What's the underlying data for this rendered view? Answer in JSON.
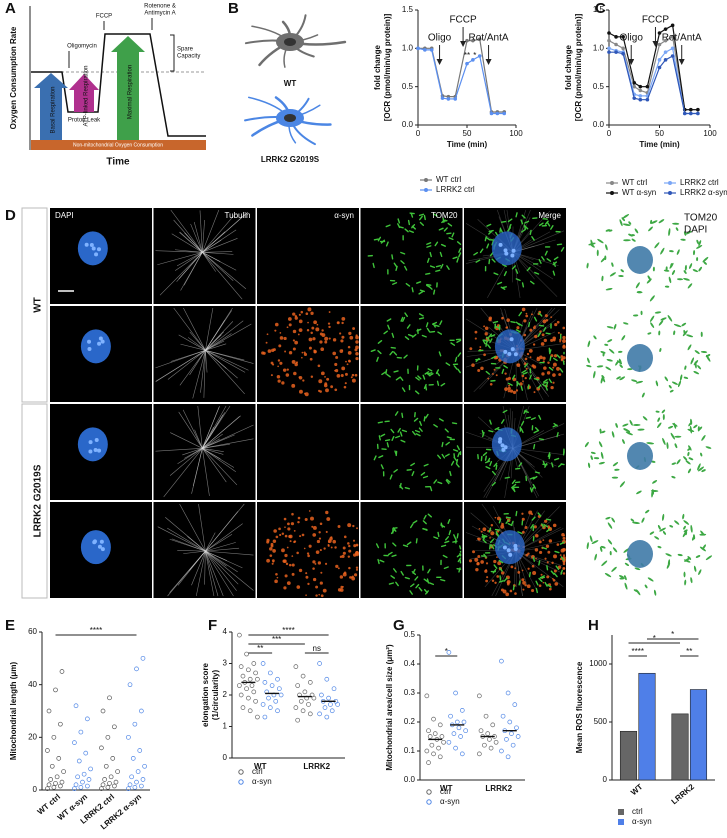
{
  "panel_labels": [
    "A",
    "B",
    "C",
    "D",
    "E",
    "F",
    "G",
    "H"
  ],
  "diagram": {
    "y_axis": "Oxygen Consumption Rate",
    "x_axis": "Time",
    "oligomycin": "Oligomycin",
    "fccp": "FCCP",
    "rotenone": [
      "Rotenone &",
      "Antimycin A"
    ],
    "spare": [
      "Spare",
      "Capacity"
    ],
    "basal": "Basal Respiration",
    "atp": "ATP-linked Respiration",
    "proton": "Proton Leak",
    "maximal": "Maximal Respiration",
    "non_mito": "Non-mitochondrial Oxygen Consumption"
  },
  "cells": [
    "WT",
    "LRRK2 G2019S"
  ],
  "microscopy": {
    "columns": [
      "DAPI",
      "Tubulin",
      "α-syn",
      "TOM20",
      "Merge"
    ],
    "rows": [
      "WT",
      "LRRK2 G2019S"
    ],
    "render_legend": [
      "TOM20",
      "DAPI"
    ]
  },
  "chart_data": [
    {
      "type": "line",
      "ylabel": [
        "fold change",
        "[OCR (pmol/min/ug protein)]"
      ],
      "xlabel": "Time (min)",
      "x": [
        0,
        7,
        14,
        25,
        31,
        38,
        50,
        56,
        63,
        75,
        81,
        88
      ],
      "xlim": [
        0,
        100
      ],
      "xticks": [
        0,
        50,
        100
      ],
      "ylim": [
        0,
        1.5
      ],
      "yticks": [
        {
          "value": 0,
          "label": "0.0"
        },
        {
          "value": 0.5,
          "label": "0.5"
        },
        {
          "value": 1,
          "label": "1.0"
        },
        {
          "value": 1.5,
          "label": "1.5"
        }
      ],
      "injections": [
        {
          "label": "Oligo",
          "x": 22
        },
        {
          "label": "FCCP",
          "x": 46
        },
        {
          "label": "Rot/AntA",
          "x": 72
        }
      ],
      "stars": [
        {
          "label": "**",
          "x": 50
        },
        {
          "label": "*",
          "x": 58
        }
      ],
      "series": [
        {
          "name": "WT ctrl",
          "color": "#777777",
          "values": [
            1,
            1,
            1,
            0.38,
            0.37,
            0.37,
            1.1,
            1.1,
            1.12,
            0.17,
            0.17,
            0.17
          ]
        },
        {
          "name": "LRRK2 ctrl",
          "color": "#5b8ff0",
          "values": [
            1,
            0.98,
            0.98,
            0.35,
            0.34,
            0.34,
            0.8,
            0.85,
            0.9,
            0.15,
            0.15,
            0.15
          ]
        }
      ]
    },
    {
      "type": "line",
      "ylabel": [
        "fold change",
        "[OCR (pmol/min/ug protein)]"
      ],
      "xlabel": "Time (min)",
      "x": [
        0,
        7,
        14,
        25,
        31,
        38,
        50,
        56,
        63,
        75,
        81,
        88
      ],
      "xlim": [
        0,
        100
      ],
      "xticks": [
        0,
        50,
        100
      ],
      "ylim": [
        0,
        1.5
      ],
      "yticks": [
        {
          "value": 0,
          "label": "0.0"
        },
        {
          "value": 0.5,
          "label": "0.5"
        },
        {
          "value": 1,
          "label": "1.0"
        },
        {
          "value": 1.5,
          "label": "1.5"
        }
      ],
      "injections": [
        {
          "label": "Oligo",
          "x": 22
        },
        {
          "label": "FCCP",
          "x": 46
        },
        {
          "label": "Rot/AntA",
          "x": 72
        }
      ],
      "series": [
        {
          "name": "WT ctrl",
          "color": "#888888",
          "values": [
            1.1,
            1.05,
            1,
            0.5,
            0.45,
            0.42,
            1.05,
            1.1,
            1.15,
            0.2,
            0.2,
            0.2
          ]
        },
        {
          "name": "WT α-syn",
          "color": "#111111",
          "values": [
            1.2,
            1.15,
            1.15,
            0.55,
            0.5,
            0.5,
            1.2,
            1.25,
            1.3,
            0.2,
            0.2,
            0.2
          ]
        },
        {
          "name": "LRRK2 ctrl",
          "color": "#7aa6f5",
          "values": [
            1,
            0.97,
            0.95,
            0.4,
            0.38,
            0.38,
            0.85,
            0.95,
            1,
            0.15,
            0.15,
            0.15
          ]
        },
        {
          "name": "LRRK2 α-syn",
          "color": "#2f57b8",
          "values": [
            0.95,
            0.95,
            0.93,
            0.35,
            0.33,
            0.33,
            0.75,
            0.85,
            0.9,
            0.15,
            0.15,
            0.15
          ]
        }
      ]
    },
    {
      "type": "strip",
      "ylabel": "Mitochondrial length (μm)",
      "categories": [
        "WT ctrl",
        "WT α-syn",
        "LRRK2 ctrl",
        "LRRK2 α-syn"
      ],
      "colors": [
        "#555555",
        "#4f86e6",
        "#555555",
        "#4f86e6"
      ],
      "ylim": [
        0,
        60
      ],
      "yticks": [
        0,
        20,
        40,
        60
      ],
      "brackets": [
        {
          "label": "****",
          "from": 0,
          "to": 3
        }
      ],
      "values": [
        [
          0.5,
          1,
          1.5,
          2,
          2.5,
          3,
          4,
          5,
          7,
          9,
          12,
          15,
          20,
          25,
          30,
          38,
          45
        ],
        [
          0.5,
          1,
          1.5,
          2,
          3,
          4,
          5,
          6,
          8,
          11,
          14,
          18,
          22,
          27,
          32
        ],
        [
          0.5,
          1,
          1.5,
          2,
          2.5,
          3,
          4,
          5,
          7,
          9,
          12,
          16,
          20,
          24,
          30,
          35
        ],
        [
          0.5,
          1,
          1.5,
          2,
          3,
          4,
          5,
          7,
          9,
          12,
          15,
          20,
          25,
          30,
          40,
          46,
          50
        ]
      ]
    },
    {
      "type": "strip",
      "ylabel": [
        "elongation score",
        "(1/circularity)"
      ],
      "categories": [
        "WT",
        "LRRK2"
      ],
      "ylim": [
        0,
        4
      ],
      "yticks": [
        0,
        1,
        2,
        3,
        4
      ],
      "brackets": [
        {
          "label": "**",
          "from": 0,
          "to": 1
        },
        {
          "label": "***",
          "from": 0,
          "to": 2
        },
        {
          "label": "****",
          "from": 0,
          "to": 3
        },
        {
          "label": "ns",
          "from": 2,
          "to": 3
        }
      ],
      "series": [
        {
          "name": "ctrl",
          "color": "#666666",
          "means": [
            2.4,
            1.95
          ],
          "values": [
            [
              3.9,
              3.3,
              3,
              2.9,
              2.8,
              2.7,
              2.6,
              2.5,
              2.5,
              2.4,
              2.3,
              2.3,
              2.2,
              2.1,
              2,
              1.9,
              1.8,
              1.6,
              1.5,
              1.3
            ],
            [
              2.9,
              2.6,
              2.4,
              2.3,
              2.1,
              2,
              2,
              1.9,
              1.9,
              1.8,
              1.7,
              1.6,
              1.5,
              1.4,
              1.2
            ]
          ]
        },
        {
          "name": "α-syn",
          "color": "#4f86e6",
          "means": [
            2.05,
            1.8
          ],
          "values": [
            [
              3,
              2.7,
              2.5,
              2.4,
              2.3,
              2.2,
              2.1,
              2,
              2,
              1.9,
              1.8,
              1.7,
              1.6,
              1.5,
              1.3
            ],
            [
              3,
              2.5,
              2.2,
              2,
              1.9,
              1.8,
              1.8,
              1.7,
              1.7,
              1.6,
              1.5,
              1.4,
              1.3
            ]
          ]
        }
      ]
    },
    {
      "type": "strip",
      "ylabel": "Mitochondrial area/cell size (μm²)",
      "categories": [
        "WT",
        "LRRK2"
      ],
      "ylim": [
        0,
        0.5
      ],
      "yticks": [
        {
          "value": 0,
          "label": "0.0"
        },
        {
          "value": 0.1,
          "label": "0.1"
        },
        {
          "value": 0.2,
          "label": "0.2"
        },
        {
          "value": 0.3,
          "label": "0.3"
        },
        {
          "value": 0.4,
          "label": "0.4"
        },
        {
          "value": 0.5,
          "label": "0.5"
        }
      ],
      "brackets": [
        {
          "label": "*",
          "from": 0,
          "to": 1
        }
      ],
      "series": [
        {
          "name": "ctrl",
          "color": "#666666",
          "means": [
            0.14,
            0.15
          ],
          "values": [
            [
              0.29,
              0.21,
              0.19,
              0.17,
              0.16,
              0.15,
              0.15,
              0.14,
              0.13,
              0.12,
              0.11,
              0.1,
              0.09,
              0.08,
              0.06
            ],
            [
              0.29,
              0.22,
              0.19,
              0.17,
              0.16,
              0.15,
              0.15,
              0.14,
              0.13,
              0.12,
              0.11,
              0.09
            ]
          ]
        },
        {
          "name": "α-syn",
          "color": "#4f86e6",
          "means": [
            0.19,
            0.17
          ],
          "values": [
            [
              0.44,
              0.3,
              0.24,
              0.22,
              0.2,
              0.2,
              0.19,
              0.18,
              0.17,
              0.16,
              0.15,
              0.13,
              0.11,
              0.09
            ],
            [
              0.41,
              0.3,
              0.26,
              0.22,
              0.2,
              0.18,
              0.17,
              0.16,
              0.15,
              0.14,
              0.12,
              0.1,
              0.08
            ]
          ]
        }
      ]
    },
    {
      "type": "bar",
      "ylabel": "Mean ROS fluorescence",
      "categories": [
        "WT",
        "LRRK2"
      ],
      "ylim": [
        0,
        1250
      ],
      "yticks": [
        0,
        500,
        1000
      ],
      "brackets": [
        {
          "label": "****",
          "from": 0,
          "to": 1
        },
        {
          "label": "*",
          "from": 0,
          "to": 2
        },
        {
          "label": "*",
          "from": 1,
          "to": 3
        },
        {
          "label": "**",
          "from": 2,
          "to": 3
        }
      ],
      "series": [
        {
          "name": "ctrl",
          "color": "#666666",
          "values": [
            420,
            570
          ]
        },
        {
          "name": "α-syn",
          "color": "#4f7fe8",
          "values": [
            920,
            780
          ]
        }
      ]
    }
  ]
}
